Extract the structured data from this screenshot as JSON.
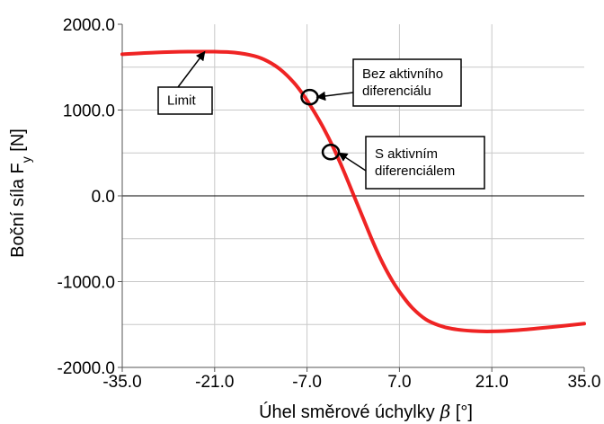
{
  "chart_data": {
    "type": "line",
    "xlabel": "Úhel směrové úchylky",
    "xlabel_symbol": "β",
    "xlabel_unit": " [°]",
    "ylabel": "Boční síla F",
    "ylabel_sub": "y",
    "ylabel_unit": " [N]",
    "xlim": [
      -35,
      35
    ],
    "ylim": [
      -2000,
      2000
    ],
    "x_ticks": [
      -35,
      -21,
      -7,
      7,
      21,
      35
    ],
    "x_tick_labels": [
      "-35.0",
      "-21.0",
      "-7.0",
      "7.0",
      "21.0",
      "35.0"
    ],
    "y_ticks": [
      -2000,
      -1000,
      0,
      1000,
      2000
    ],
    "y_tick_labels": [
      "-2000.0",
      "-1000.0",
      "0.0",
      "1000.0",
      "2000.0"
    ],
    "y_minor_step": 500,
    "grid": true,
    "series": [
      {
        "color": "#ee1111",
        "x": [
          -35,
          -30,
          -25,
          -21,
          -18,
          -15,
          -13,
          -11,
          -9,
          -7.5,
          -6,
          -4.5,
          -3,
          -1.5,
          0,
          1.5,
          3,
          4.5,
          6,
          7.5,
          9,
          11,
          13,
          15,
          18,
          21,
          25,
          30,
          35
        ],
        "y": [
          1650,
          1670,
          1680,
          1680,
          1670,
          1630,
          1570,
          1470,
          1320,
          1170,
          990,
          790,
          560,
          300,
          20,
          -260,
          -540,
          -790,
          -1000,
          -1170,
          -1310,
          -1440,
          -1510,
          -1550,
          -1575,
          -1580,
          -1565,
          -1530,
          -1490
        ]
      }
    ],
    "markers": [
      {
        "name": "bez-aktivniho",
        "x": -6.6,
        "y": 1150
      },
      {
        "name": "s-aktivnim",
        "x": -3.4,
        "y": 510
      }
    ],
    "annotations": [
      {
        "name": "limit",
        "lines": [
          "Limit"
        ],
        "target_x": -22.5,
        "target_y": 1680
      },
      {
        "name": "bez-aktivniho",
        "lines": [
          "Bez aktivního",
          "diferenciálu"
        ],
        "target_x": -5.5,
        "target_y": 1150
      },
      {
        "name": "s-aktivnim",
        "lines": [
          "S aktivním",
          "diferenciálem"
        ],
        "target_x": -2.2,
        "target_y": 500
      }
    ]
  }
}
